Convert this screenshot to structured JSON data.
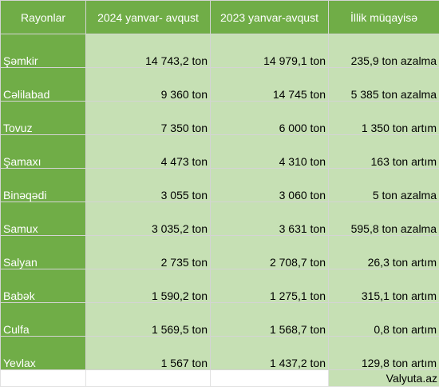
{
  "table": {
    "headers": [
      "Rayonlar",
      "2024 yanvar- avqust",
      "2023 yanvar-avqust",
      "İllik müqayisə"
    ],
    "rows": [
      {
        "district": "Şəmkir",
        "y2024": "14 743,2 ton",
        "y2023": "14 979,1 ton",
        "change": "235,9 ton azalma"
      },
      {
        "district": "Cəlilabad",
        "y2024": "9 360 ton",
        "y2023": "14 745 ton",
        "change": "5 385 ton azalma"
      },
      {
        "district": "Tovuz",
        "y2024": "7 350 ton",
        "y2023": "6 000 ton",
        "change": "1 350 ton artım"
      },
      {
        "district": "Şamaxı",
        "y2024": "4 473 ton",
        "y2023": "4 310 ton",
        "change": "163 ton artım"
      },
      {
        "district": "Binəqədi",
        "y2024": "3 055 ton",
        "y2023": "3 060 ton",
        "change": "5 ton azalma"
      },
      {
        "district": "Samux",
        "y2024": "3 035,2 ton",
        "y2023": "3 631 ton",
        "change": "595,8 ton azalma"
      },
      {
        "district": "Salyan",
        "y2024": "2 735 ton",
        "y2023": "2 708,7 ton",
        "change": "26,3 ton artım"
      },
      {
        "district": "Babək",
        "y2024": "1 590,2 ton",
        "y2023": "1 275,1 ton",
        "change": "315,1 ton artım"
      },
      {
        "district": "Culfa",
        "y2024": "1 569,5 ton",
        "y2023": "1 568,7 ton",
        "change": "0,8 ton artım"
      },
      {
        "district": "Yevlax",
        "y2024": "1 567 ton",
        "y2023": "1 437,2 ton",
        "change": "129,8 ton artım"
      }
    ],
    "source": "Valyuta.az"
  },
  "colors": {
    "header_green": "#70ad47",
    "cell_light_green": "#c6e0b4",
    "text_white": "#ffffff"
  }
}
